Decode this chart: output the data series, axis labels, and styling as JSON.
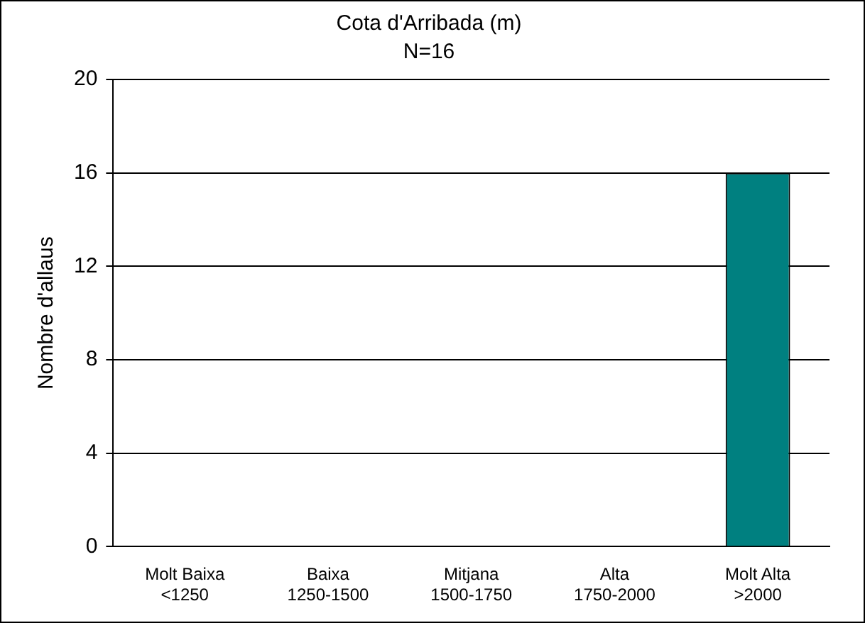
{
  "chart_data": {
    "type": "bar",
    "title": "Cota d'Arribada (m)",
    "subtitle": "N=16",
    "ylabel": "Nombre d'allaus",
    "categories": [
      "Molt Baixa\n<1250",
      "Baixa\n1250-1500",
      "Mitjana\n1500-1750",
      "Alta\n1750-2000",
      "Molt Alta\n>2000"
    ],
    "values": [
      0,
      0,
      0,
      0,
      16
    ],
    "color": "#008080",
    "ylim": [
      0,
      20
    ],
    "yticks": [
      0,
      4,
      8,
      12,
      16,
      20
    ],
    "grid": "y",
    "legend": false
  }
}
